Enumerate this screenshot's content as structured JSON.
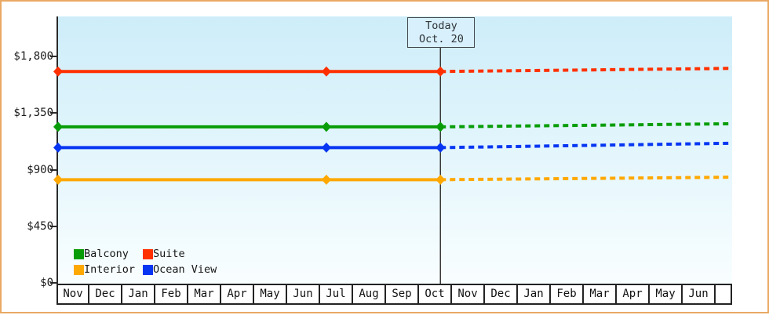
{
  "today_marker": {
    "line1": "Today",
    "line2": "Oct. 20"
  },
  "legend": {
    "rows": [
      [
        "Balcony",
        "Suite"
      ],
      [
        "Interior",
        "Ocean View"
      ]
    ]
  },
  "colors": {
    "frame_border": "#e9a964",
    "axis": "#2b2b2b",
    "today_line": "#3a3a3a",
    "today_box_border": "#40474d",
    "today_box_bg": "#d8f0fb",
    "plot_bg_top": "#cdedf9",
    "plot_bg_bottom": "#f9feff"
  },
  "chart_data": {
    "type": "line",
    "title": "",
    "xlabel": "",
    "ylabel": "",
    "x_tick_labels": [
      "Nov",
      "Dec",
      "Jan",
      "Feb",
      "Mar",
      "Apr",
      "May",
      "Jun",
      "Jul",
      "Aug",
      "Sep",
      "Oct",
      "Nov",
      "Dec",
      "Jan",
      "Feb",
      "Mar",
      "Apr",
      "May",
      "Jun"
    ],
    "x_months_visible": 20.45,
    "today_month_index": 11.6,
    "y_tick_labels": [
      "$0",
      "$450",
      "$900",
      "$1,350",
      "$1,800"
    ],
    "y_tick_values": [
      0,
      450,
      900,
      1350,
      1800
    ],
    "ylim": [
      0,
      1800
    ],
    "grid": false,
    "legend_position": "bottom-left",
    "annotation": "Today Oct. 20",
    "series": [
      {
        "name": "Suite",
        "color": "#ff3000",
        "history_value": 1680,
        "projected_end_value": 1705,
        "marker_month_indices": [
          0,
          8.14,
          11.6
        ],
        "history_style": "solid",
        "projection_style": "dashed"
      },
      {
        "name": "Balcony",
        "color": "#089d08",
        "history_value": 1240,
        "projected_end_value": 1265,
        "marker_month_indices": [
          0,
          8.14,
          11.6
        ],
        "history_style": "solid",
        "projection_style": "dashed"
      },
      {
        "name": "Ocean View",
        "color": "#0636f2",
        "history_value": 1075,
        "projected_end_value": 1110,
        "marker_month_indices": [
          0,
          8.14,
          11.6
        ],
        "history_style": "solid",
        "projection_style": "dashed"
      },
      {
        "name": "Interior",
        "color": "#ffa800",
        "history_value": 820,
        "projected_end_value": 840,
        "marker_month_indices": [
          0,
          8.14,
          11.6
        ],
        "history_style": "solid",
        "projection_style": "dashed"
      }
    ]
  }
}
